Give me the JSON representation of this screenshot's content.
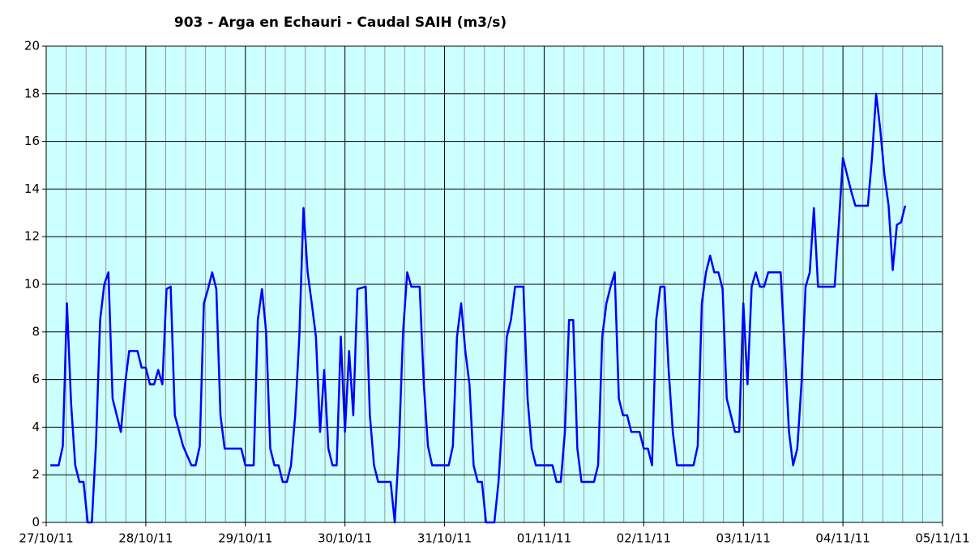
{
  "chart_data": {
    "type": "line",
    "title": "903 - Arga en Echauri - Caudal SAIH (m3/s)",
    "x": [
      1,
      3,
      4,
      5,
      6,
      7,
      8,
      9,
      10,
      11,
      12,
      13,
      14,
      15,
      16,
      18,
      19,
      20,
      22,
      23,
      24,
      25,
      26,
      27,
      28,
      29,
      30,
      31,
      33,
      35,
      36,
      37,
      38,
      39,
      40,
      41,
      42,
      43,
      47,
      48,
      50,
      51,
      52,
      53,
      54,
      55,
      56,
      57,
      58,
      59,
      60,
      61,
      62,
      63,
      64,
      65,
      66,
      67,
      68,
      69,
      70,
      71,
      72,
      73,
      74,
      75,
      77,
      78,
      79,
      80,
      83,
      84,
      85,
      86,
      87,
      88,
      90,
      91,
      92,
      93,
      97,
      98,
      99,
      100,
      101,
      102,
      103,
      104,
      105,
      106,
      108,
      109,
      110,
      111,
      112,
      113,
      115,
      116,
      117,
      118,
      121,
      122,
      123,
      124,
      125,
      126,
      127,
      128,
      129,
      132,
      133,
      134,
      135,
      136,
      137,
      138,
      139,
      140,
      141,
      143,
      144,
      145,
      146,
      147,
      148,
      149,
      150,
      151,
      152,
      156,
      157,
      158,
      159,
      160,
      161,
      162,
      163,
      164,
      165,
      166,
      167,
      168,
      169,
      170,
      171,
      172,
      173,
      174,
      177,
      178,
      179,
      180,
      181,
      182,
      183,
      184,
      185,
      186,
      189,
      190,
      191,
      192,
      193,
      194,
      195,
      198,
      199,
      200,
      201,
      202,
      203,
      204,
      205,
      206,
      207
    ],
    "series": [
      {
        "name": "Caudal",
        "color": "#0000ff",
        "values": [
          2.4,
          2.4,
          3.2,
          9.2,
          5,
          2.4,
          1.7,
          1.7,
          0,
          0,
          3.3,
          8.5,
          10,
          10.5,
          5.2,
          3.8,
          5.8,
          7.2,
          7.2,
          6.5,
          6.5,
          5.8,
          5.8,
          6.4,
          5.8,
          9.8,
          9.9,
          4.5,
          3.2,
          2.4,
          2.4,
          3.2,
          9.2,
          9.8,
          10.5,
          9.8,
          4.5,
          3.1,
          3.1,
          2.4,
          2.4,
          8.5,
          9.8,
          8,
          3.1,
          2.4,
          2.4,
          1.7,
          1.7,
          2.4,
          4.5,
          7.8,
          13.2,
          10.5,
          9.2,
          7.8,
          3.8,
          6.4,
          3.1,
          2.4,
          2.4,
          7.8,
          3.8,
          7.2,
          4.5,
          9.8,
          9.9,
          4.5,
          2.4,
          1.7,
          1.7,
          0,
          3.2,
          8,
          10.5,
          9.9,
          9.9,
          5.8,
          3.2,
          2.4,
          2.4,
          3.2,
          7.8,
          9.2,
          7.2,
          5.8,
          2.4,
          1.7,
          1.7,
          0,
          0,
          1.7,
          4.5,
          7.8,
          8.5,
          9.9,
          9.9,
          5.2,
          3.1,
          2.4,
          2.4,
          2.4,
          1.7,
          1.7,
          3.8,
          8.5,
          8.5,
          3.1,
          1.7,
          1.7,
          2.4,
          7.8,
          9.2,
          9.9,
          10.5,
          5.2,
          4.5,
          4.5,
          3.8,
          3.8,
          3.1,
          3.1,
          2.4,
          8.5,
          9.9,
          9.9,
          6.4,
          3.8,
          2.4,
          2.4,
          3.2,
          9.2,
          10.5,
          11.2,
          10.5,
          10.5,
          9.8,
          5.2,
          4.5,
          3.8,
          3.8,
          9.2,
          5.8,
          9.9,
          10.5,
          9.9,
          9.9,
          10.5,
          10.5,
          7.2,
          3.8,
          2.4,
          3.1,
          5.8,
          9.9,
          10.5,
          13.2,
          9.9,
          9.9,
          9.9,
          12.5,
          15.3,
          14.6,
          13.9,
          13.3,
          13.3,
          15.3,
          18,
          16.5,
          14.6,
          13.3,
          10.6,
          12.5,
          12.6,
          13.3
        ]
      }
    ],
    "xlim": [
      0,
      216
    ],
    "xticks": [
      {
        "value": 0,
        "label": "27/10/11"
      },
      {
        "value": 24,
        "label": "28/10/11"
      },
      {
        "value": 48,
        "label": "29/10/11"
      },
      {
        "value": 72,
        "label": "30/10/11"
      },
      {
        "value": 96,
        "label": "31/10/11"
      },
      {
        "value": 120,
        "label": "01/11/11"
      },
      {
        "value": 144,
        "label": "02/11/11"
      },
      {
        "value": 168,
        "label": "03/11/11"
      },
      {
        "value": 192,
        "label": "04/11/11"
      },
      {
        "value": 216,
        "label": "05/11/11"
      }
    ],
    "ylim": [
      0,
      20
    ],
    "yticks": [
      0,
      2,
      4,
      6,
      8,
      10,
      12,
      14,
      16,
      18,
      20
    ],
    "grid": true,
    "minor_grid_per_tick": 5,
    "background": "#ccffff"
  }
}
